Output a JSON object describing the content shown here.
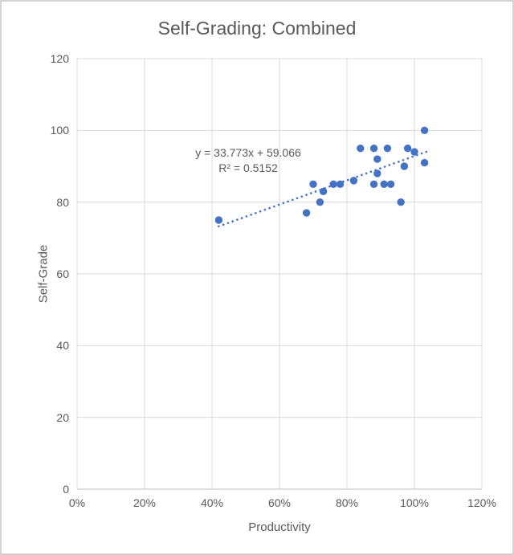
{
  "chart_data": {
    "type": "scatter",
    "title": "Self-Grading: Combined",
    "xlabel": "Productivity",
    "ylabel": "Self-Grade",
    "xlim": [
      0,
      120
    ],
    "ylim": [
      0,
      120
    ],
    "x_ticks": [
      {
        "value": 0,
        "label": "0%"
      },
      {
        "value": 20,
        "label": "20%"
      },
      {
        "value": 40,
        "label": "40%"
      },
      {
        "value": 60,
        "label": "60%"
      },
      {
        "value": 80,
        "label": "80%"
      },
      {
        "value": 100,
        "label": "100%"
      },
      {
        "value": 120,
        "label": "120%"
      }
    ],
    "y_ticks": [
      {
        "value": 0,
        "label": "0"
      },
      {
        "value": 20,
        "label": "20"
      },
      {
        "value": 40,
        "label": "40"
      },
      {
        "value": 60,
        "label": "60"
      },
      {
        "value": 80,
        "label": "80"
      },
      {
        "value": 100,
        "label": "100"
      },
      {
        "value": 120,
        "label": "120"
      }
    ],
    "points_x_pct": [
      42,
      68,
      70,
      72,
      73,
      76,
      78,
      82,
      84,
      88,
      88,
      89,
      89,
      91,
      92,
      93,
      96,
      97,
      98,
      100,
      103,
      103
    ],
    "points_y": [
      75,
      77,
      85,
      80,
      83,
      85,
      85,
      86,
      95,
      85,
      95,
      88,
      92,
      85,
      95,
      85,
      80,
      90,
      95,
      94,
      91,
      100
    ],
    "trendline": {
      "slope": 33.773,
      "intercept": 59.066,
      "r_squared": 0.5152,
      "x_start_pct": 42,
      "x_end_pct": 104,
      "style": "dotted",
      "equation_label": "y = 33.773x + 59.066",
      "r_squared_label": "R² = 0.5152"
    },
    "grid": true,
    "legend": false,
    "colors": {
      "point": "#4472c4",
      "trendline": "#4472c4",
      "gridline": "#d9d9d9",
      "axis_line": "#bfbfbf",
      "text": "#595959"
    }
  }
}
